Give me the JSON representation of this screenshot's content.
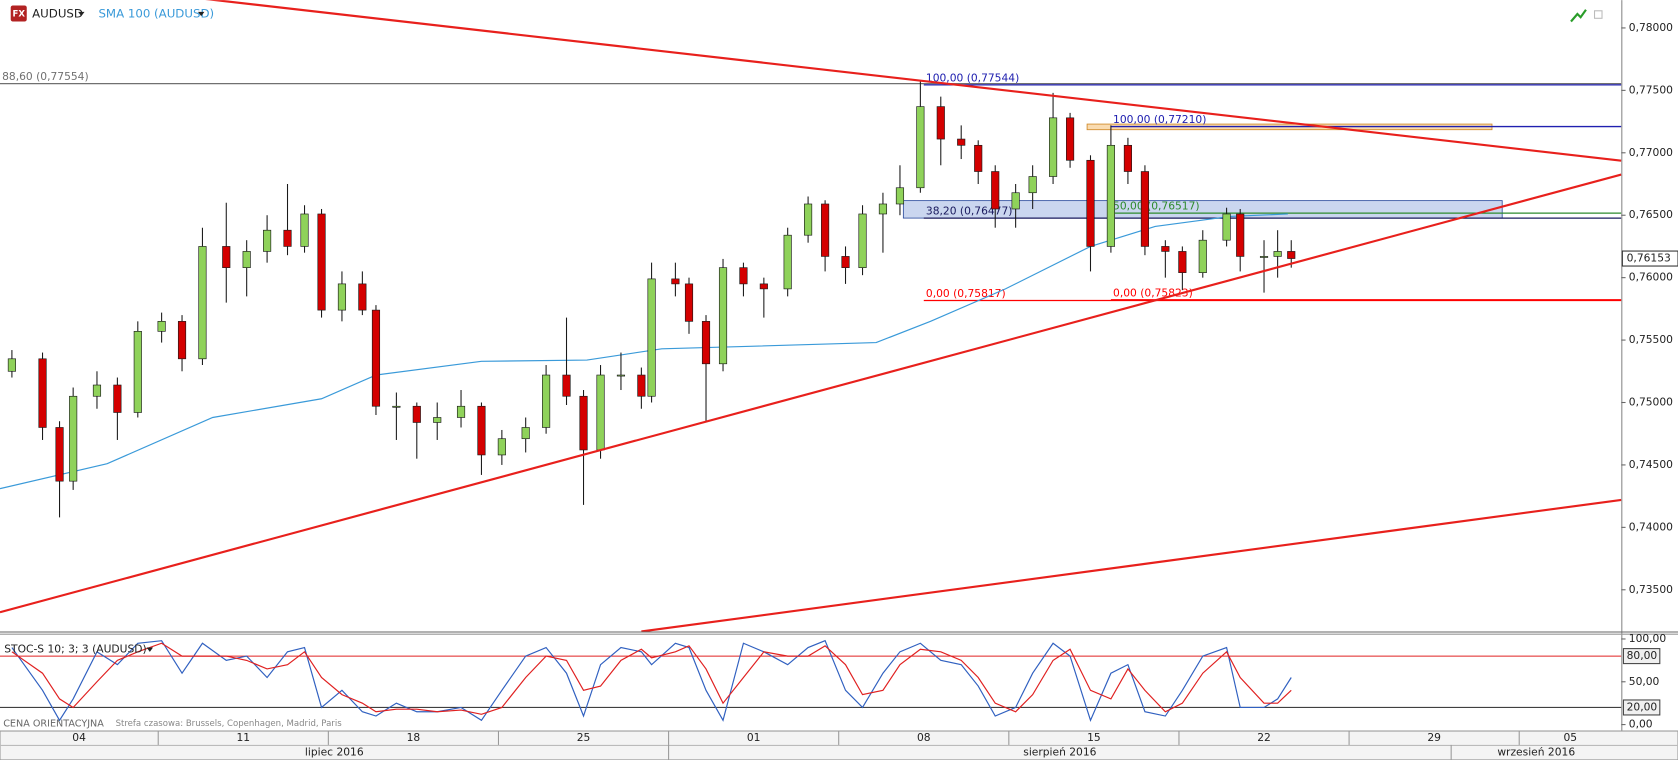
{
  "icon_text": "FX",
  "footer": {
    "price_type": "CENA ORIENTACYJNA",
    "timezone": "Strefa czasowa: Brussels, Copenhagen, Madrid, Paris"
  },
  "chart_data": [
    {
      "type": "candlestick",
      "symbol": "AUDUSD",
      "up_color": "#8fd25a",
      "down_color": "#d40000",
      "x": [
        0.7,
        1.6,
        2.1,
        2.5,
        3.2,
        3.8,
        4.4,
        5.1,
        5.7,
        6.3,
        7.0,
        7.6,
        8.2,
        8.8,
        9.3,
        9.8,
        10.4,
        11.0,
        11.4,
        12.0,
        12.6,
        13.2,
        13.9,
        14.5,
        15.1,
        15.8,
        16.4,
        17.0,
        17.5,
        18.0,
        18.6,
        19.2,
        19.5,
        20.2,
        20.6,
        21.1,
        21.6,
        22.2,
        22.8,
        23.5,
        24.1,
        24.6,
        25.2,
        25.7,
        26.3,
        26.8,
        27.4,
        28.0,
        28.6,
        29.1,
        29.6,
        30.2,
        30.7,
        31.3,
        31.8,
        32.4,
        33.0,
        33.5,
        34.0,
        34.6,
        35.1,
        35.7,
        36.4,
        36.8,
        37.5,
        37.9,
        38.3
      ],
      "open": [
        0.7525,
        0.7535,
        0.748,
        0.7437,
        0.7505,
        0.7514,
        0.7492,
        0.7557,
        0.7565,
        0.7535,
        0.7625,
        0.7608,
        0.7621,
        0.7638,
        0.7625,
        0.7651,
        0.7574,
        0.7595,
        0.7574,
        0.7497,
        0.7497,
        0.7484,
        0.7488,
        0.7497,
        0.7458,
        0.7471,
        0.748,
        0.7522,
        0.7505,
        0.7462,
        0.7522,
        0.7522,
        0.7505,
        0.7599,
        0.7595,
        0.7565,
        0.7531,
        0.7608,
        0.7595,
        0.7591,
        0.7634,
        0.7659,
        0.7617,
        0.7608,
        0.7651,
        0.7659,
        0.7672,
        0.7737,
        0.7711,
        0.7706,
        0.7685,
        0.7655,
        0.7668,
        0.7681,
        0.7728,
        0.7694,
        0.7625,
        0.7706,
        0.7685,
        0.7625,
        0.7621,
        0.7604,
        0.763,
        0.7651,
        0.7617,
        0.7617,
        0.7621
      ],
      "high": [
        0.7542,
        0.754,
        0.7485,
        0.7512,
        0.7525,
        0.752,
        0.7565,
        0.7572,
        0.757,
        0.764,
        0.766,
        0.763,
        0.765,
        0.7675,
        0.7658,
        0.7655,
        0.7605,
        0.7605,
        0.7578,
        0.7508,
        0.75,
        0.75,
        0.751,
        0.75,
        0.7478,
        0.7488,
        0.753,
        0.7568,
        0.751,
        0.753,
        0.754,
        0.7528,
        0.7612,
        0.7612,
        0.76,
        0.757,
        0.7615,
        0.7612,
        0.76,
        0.764,
        0.7665,
        0.7662,
        0.7625,
        0.7658,
        0.7668,
        0.769,
        0.7758,
        0.7745,
        0.7722,
        0.771,
        0.769,
        0.7675,
        0.769,
        0.7748,
        0.7732,
        0.7698,
        0.7722,
        0.7712,
        0.769,
        0.763,
        0.7625,
        0.7638,
        0.7656,
        0.7655,
        0.763,
        0.7638,
        0.763
      ],
      "low": [
        0.752,
        0.747,
        0.7408,
        0.743,
        0.7495,
        0.747,
        0.7488,
        0.7548,
        0.7525,
        0.753,
        0.758,
        0.7585,
        0.7612,
        0.7618,
        0.762,
        0.7568,
        0.7565,
        0.757,
        0.749,
        0.747,
        0.7455,
        0.747,
        0.748,
        0.7442,
        0.745,
        0.746,
        0.7475,
        0.7498,
        0.7418,
        0.7455,
        0.751,
        0.7495,
        0.75,
        0.7585,
        0.7555,
        0.7485,
        0.7525,
        0.7585,
        0.7568,
        0.7585,
        0.7628,
        0.7605,
        0.7595,
        0.7602,
        0.762,
        0.765,
        0.7668,
        0.769,
        0.7695,
        0.7675,
        0.764,
        0.764,
        0.7655,
        0.7675,
        0.7688,
        0.7605,
        0.762,
        0.7675,
        0.7618,
        0.76,
        0.759,
        0.76,
        0.7625,
        0.7605,
        0.7588,
        0.76,
        0.7608
      ],
      "close": [
        0.7535,
        0.748,
        0.7437,
        0.7505,
        0.7514,
        0.7492,
        0.7557,
        0.7565,
        0.7535,
        0.7625,
        0.7608,
        0.7621,
        0.7638,
        0.7625,
        0.7651,
        0.7574,
        0.7595,
        0.7574,
        0.7497,
        0.7497,
        0.7484,
        0.7488,
        0.7497,
        0.7458,
        0.7471,
        0.748,
        0.7522,
        0.7505,
        0.7462,
        0.7522,
        0.7522,
        0.7505,
        0.7599,
        0.7595,
        0.7565,
        0.7531,
        0.7608,
        0.7595,
        0.7591,
        0.7634,
        0.7659,
        0.7617,
        0.7608,
        0.7651,
        0.7659,
        0.7672,
        0.7737,
        0.7711,
        0.7706,
        0.7685,
        0.7655,
        0.7668,
        0.7681,
        0.7728,
        0.7694,
        0.7625,
        0.7706,
        0.7685,
        0.7625,
        0.7621,
        0.7604,
        0.763,
        0.7651,
        0.7617,
        0.7617,
        0.7621,
        0.76153
      ],
      "last_price": {
        "value": 0.76153,
        "label": "0,76153"
      },
      "sma": {
        "name": "SMA 100 (AUDUSD)",
        "color": "#3a9ad9",
        "x": [
          0.35,
          3.5,
          6.6,
          9.8,
          11.4,
          14.5,
          17.6,
          19.8,
          22.4,
          26.1,
          27.7,
          29.9,
          32.4,
          34.3,
          36.5,
          38.2
        ],
        "values": [
          0.7431,
          0.7451,
          0.7488,
          0.7503,
          0.7522,
          0.7533,
          0.7534,
          0.7543,
          0.7545,
          0.7548,
          0.7565,
          0.7591,
          0.7625,
          0.7641,
          0.7649,
          0.7651
        ]
      },
      "trendlines": [
        {
          "color": "#e8201c",
          "x": [
            0.35,
            48
          ],
          "values": [
            0.7842,
            0.76937
          ]
        },
        {
          "color": "#e8201c",
          "x": [
            0.35,
            48
          ],
          "values": [
            0.7332,
            0.76826
          ]
        },
        {
          "color": "#e8201c",
          "x": [
            19.2,
            48
          ],
          "values": [
            0.73166,
            0.7422
          ]
        }
      ],
      "boxes": [
        {
          "color": "#f7cf95",
          "x": [
            32.3,
            44.2
          ],
          "values": [
            0.77185,
            0.7723
          ]
        },
        {
          "color": "#b8c8ea",
          "x": [
            26.9,
            44.5
          ],
          "values": [
            0.76477,
            0.76617
          ]
        }
      ],
      "levels": [
        {
          "label": "88,60 (0,77554)",
          "value": 0.77554,
          "x": [
            0.35,
            48
          ],
          "color": "#707070"
        },
        {
          "label": "100,00 (0,77544)",
          "value": 0.77544,
          "x": [
            27.5,
            48
          ],
          "color": "#2020b0"
        },
        {
          "label": "100,00 (0,77210)",
          "value": 0.7721,
          "x": [
            33.0,
            48
          ],
          "color": "#2020b0"
        },
        {
          "label": "38,20 (0,76477)",
          "value": 0.76477,
          "x": [
            27.5,
            48
          ],
          "color": "#1a1a5e"
        },
        {
          "label": "50,00 (0,76517)",
          "value": 0.76517,
          "x": [
            33.0,
            48
          ],
          "color": "#2e8b2e"
        },
        {
          "label": "0,00 (0,75817)",
          "value": 0.75817,
          "x": [
            27.5,
            48
          ],
          "color": "#ff0000"
        },
        {
          "label": "0,00 (0,75823)",
          "value": 0.75823,
          "x": [
            33.0,
            48
          ],
          "color": "#ff0000"
        }
      ],
      "xlim": [
        0.35,
        48
      ],
      "ylim": [
        0.73166,
        0.78223
      ],
      "yticks": [
        {
          "value": 0.735,
          "label": "0,73500"
        },
        {
          "value": 0.74,
          "label": "0,74000"
        },
        {
          "value": 0.745,
          "label": "0,74500"
        },
        {
          "value": 0.75,
          "label": "0,75000"
        },
        {
          "value": 0.755,
          "label": "0,75500"
        },
        {
          "value": 0.76,
          "label": "0,76000"
        },
        {
          "value": 0.765,
          "label": "0,76500"
        },
        {
          "value": 0.77,
          "label": "0,77000"
        },
        {
          "value": 0.775,
          "label": "0,77500"
        },
        {
          "value": 0.78,
          "label": "0,78000"
        }
      ],
      "xticks": [
        {
          "value": 0,
          "label": "04"
        },
        {
          "value": 5,
          "label": "11"
        },
        {
          "value": 10,
          "label": "18"
        },
        {
          "value": 15,
          "label": "25"
        },
        {
          "value": 20,
          "label": "01"
        },
        {
          "value": 25,
          "label": "08"
        },
        {
          "value": 30,
          "label": "15"
        },
        {
          "value": 35,
          "label": "22"
        },
        {
          "value": 40,
          "label": "29"
        },
        {
          "value": 45,
          "label": "05"
        }
      ],
      "months": [
        {
          "value": 0,
          "label": "lipiec 2016"
        },
        {
          "value": 20,
          "label": "sierpień 2016"
        },
        {
          "value": 43,
          "label": "wrzesień 2016"
        }
      ]
    },
    {
      "type": "line",
      "title": "STOC-S 10; 3; 3 (AUDUSD)",
      "series": [
        {
          "color": "#3060c0",
          "values": [
            90,
            40,
            5,
            30,
            85,
            70,
            95,
            98,
            60,
            95,
            75,
            80,
            55,
            85,
            90,
            20,
            40,
            15,
            10,
            25,
            15,
            15,
            20,
            5,
            40,
            80,
            90,
            60,
            10,
            70,
            90,
            85,
            70,
            95,
            90,
            40,
            5,
            95,
            85,
            70,
            90,
            98,
            40,
            20,
            60,
            85,
            95,
            75,
            70,
            45,
            10,
            20,
            60,
            95,
            80,
            5,
            60,
            70,
            15,
            10,
            40,
            80,
            90,
            20,
            20,
            30,
            55
          ]
        },
        {
          "color": "#e02020",
          "values": [
            85,
            60,
            30,
            20,
            50,
            75,
            85,
            95,
            80,
            80,
            80,
            75,
            65,
            70,
            85,
            55,
            35,
            25,
            15,
            18,
            18,
            15,
            17,
            12,
            20,
            55,
            80,
            75,
            40,
            45,
            75,
            88,
            78,
            85,
            92,
            65,
            25,
            55,
            85,
            80,
            80,
            92,
            70,
            35,
            40,
            70,
            88,
            85,
            75,
            55,
            25,
            15,
            35,
            75,
            88,
            40,
            30,
            65,
            40,
            15,
            25,
            60,
            85,
            55,
            25,
            25,
            40
          ]
        }
      ],
      "levels": [
        {
          "value": 80,
          "label": "80,00",
          "color": "#e02020"
        },
        {
          "value": 20,
          "label": "20,00",
          "color": "#404040"
        }
      ],
      "ylim": [
        -7.5,
        106.25
      ],
      "yticks": [
        {
          "value": 0,
          "label": "0,00"
        },
        {
          "value": 50,
          "label": "50,00"
        },
        {
          "value": 100,
          "label": "100,00"
        }
      ]
    }
  ]
}
